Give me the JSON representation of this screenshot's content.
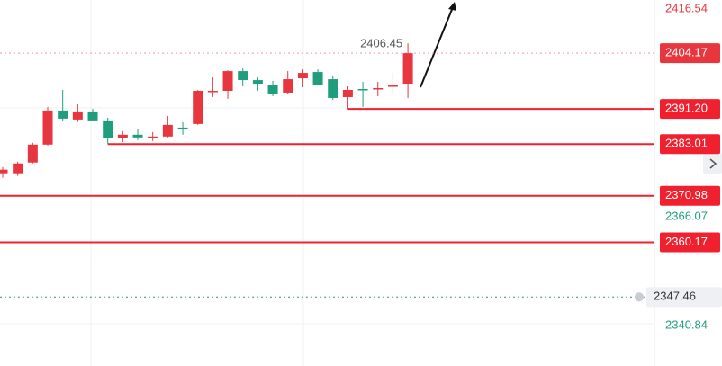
{
  "chart_data": {
    "type": "candlestick",
    "open": [
      2376.23,
      2376.23,
      2378.73,
      2382.9,
      2390.83,
      2388.74,
      2390.62,
      2388.53,
      2384.36,
      2385.2,
      2384.57,
      2384.78,
      2386.86,
      2387.7,
      2395.2,
      2395.41,
      2400.0,
      2397.91,
      2396.87,
      2395.0,
      2398.33,
      2399.79,
      2398.12,
      2393.95,
      2395.83,
      2395.83,
      2396.46,
      2397.08
    ],
    "high": [
      2377.69,
      2378.94,
      2383.32,
      2391.66,
      2395.62,
      2392.29,
      2391.24,
      2389.16,
      2386.03,
      2386.45,
      2385.82,
      2389.57,
      2388.12,
      2395.62,
      2398.54,
      2400.21,
      2400.63,
      2398.54,
      2397.71,
      2400.0,
      2400.42,
      2400.42,
      2398.75,
      2396.46,
      2397.5,
      2397.5,
      2399.58,
      2406.45
    ],
    "low": [
      2375.19,
      2375.61,
      2378.52,
      2382.69,
      2388.32,
      2388.12,
      2388.53,
      2383.01,
      2383.53,
      2383.95,
      2383.74,
      2384.57,
      2385.2,
      2387.49,
      2393.95,
      2393.54,
      2396.46,
      2395.41,
      2394.16,
      2394.58,
      2396.25,
      2396.87,
      2393.33,
      2391.2,
      2391.66,
      2394.16,
      2394.79,
      2393.74
    ],
    "close": [
      2377.07,
      2378.52,
      2382.9,
      2390.83,
      2388.95,
      2390.62,
      2388.53,
      2384.36,
      2385.2,
      2384.57,
      2384.78,
      2387.49,
      2386.45,
      2395.41,
      2395.41,
      2400.0,
      2397.91,
      2397.08,
      2394.79,
      2398.12,
      2399.58,
      2396.87,
      2393.74,
      2395.62,
      2395.62,
      2396.04,
      2396.66,
      2404.17
    ],
    "up_color": "#e8363f",
    "down_color": "#1f9e7e",
    "ylim": [
      2331.4,
      2416.54
    ],
    "yticks": [
      2416.54,
      2366.07,
      2340.84
    ],
    "ytick_colors": [
      "#e8363f",
      "#1f9e7e",
      "#1f9e7e"
    ],
    "levels": [
      {
        "value": 2391.2,
        "label": "2391.20"
      },
      2383.01,
      2370.98,
      2360.17
    ],
    "level_color": "#f0202e",
    "alert": 2347.46
  }
}
